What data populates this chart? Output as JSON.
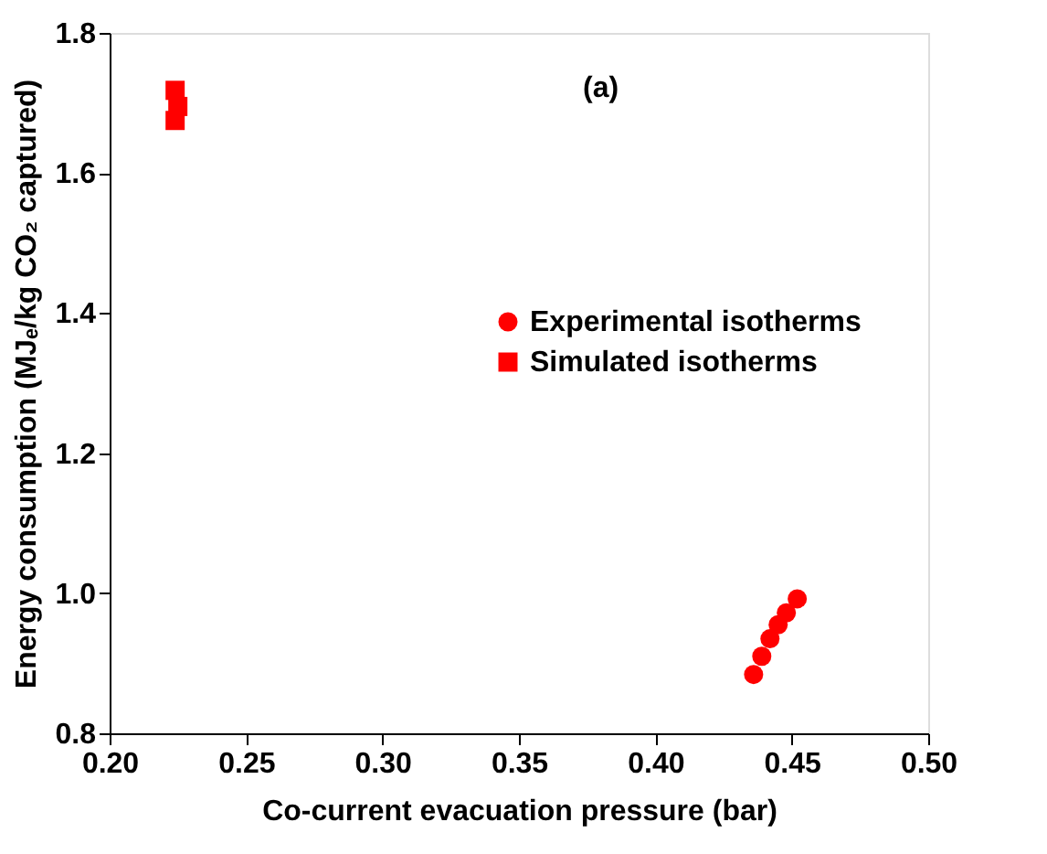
{
  "chart_data": {
    "type": "scatter",
    "xlabel": "Co-current evacuation pressure (bar)",
    "ylabel": "Energy consumption (MJₑ/kg CO₂ captured)",
    "annotations": [
      "(a)"
    ],
    "xlim": [
      0.2,
      0.5
    ],
    "xticks": [
      {
        "value": 0.2,
        "label": "0.20"
      },
      {
        "value": 0.25,
        "label": "0.25"
      },
      {
        "value": 0.3,
        "label": "0.30"
      },
      {
        "value": 0.35,
        "label": "0.35"
      },
      {
        "value": 0.4,
        "label": "0.40"
      },
      {
        "value": 0.45,
        "label": "0.45"
      },
      {
        "value": 0.5,
        "label": "0.50"
      }
    ],
    "ylim": [
      0.8,
      1.8
    ],
    "yticks": [
      {
        "value": 0.8,
        "label": "0.8"
      },
      {
        "value": 1.0,
        "label": "1.0"
      },
      {
        "value": 1.2,
        "label": "1.2"
      },
      {
        "value": 1.4,
        "label": "1.4"
      },
      {
        "value": 1.6,
        "label": "1.6"
      },
      {
        "value": 1.8,
        "label": "1.8"
      }
    ],
    "grid": false,
    "legend": "right",
    "series": [
      {
        "name": "Experimental isotherms",
        "color": "#ff0000",
        "marker": "circle",
        "x": [
          0.436,
          0.439,
          0.442,
          0.445,
          0.448,
          0.452
        ],
        "values": [
          0.884,
          0.91,
          0.935,
          0.955,
          0.972,
          0.992
        ]
      },
      {
        "name": "Simulated isotherms",
        "color": "#ff0000",
        "marker": "square",
        "x": [
          0.224,
          0.225,
          0.224
        ],
        "values": [
          1.675,
          1.695,
          1.718
        ]
      }
    ]
  }
}
